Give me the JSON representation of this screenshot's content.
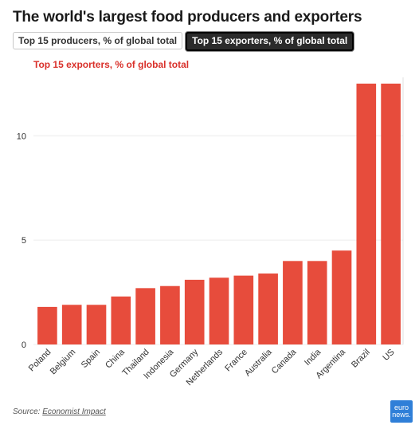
{
  "header": {
    "title": "The world's largest food producers and exporters"
  },
  "tabs": [
    {
      "label": "Top 15 producers, % of global total",
      "active": false
    },
    {
      "label": "Top 15 exporters, % of global total",
      "active": true
    }
  ],
  "colors": {
    "bar": "#e74c3c",
    "chart_title": "#d9312b"
  },
  "chart_data": {
    "type": "bar",
    "title": "Top 15 exporters, % of global total",
    "xlabel": "",
    "ylabel": "",
    "categories": [
      "Poland",
      "Belgium",
      "Spain",
      "China",
      "Thailand",
      "Indonesia",
      "Germany",
      "Netherlands",
      "France",
      "Australia",
      "Canada",
      "India",
      "Argentina",
      "Brazil",
      "US"
    ],
    "values": [
      1.8,
      1.9,
      1.9,
      2.3,
      2.7,
      2.8,
      3.1,
      3.2,
      3.3,
      3.4,
      4.0,
      4.0,
      4.5,
      12.5,
      12.5
    ],
    "ylim": [
      0,
      12.8
    ],
    "yticks": [
      0,
      5,
      10
    ],
    "grid": true
  },
  "footer": {
    "source_prefix": "Source:",
    "source_name": "Economist Impact",
    "logo_line1": "euro",
    "logo_line2": "news."
  }
}
